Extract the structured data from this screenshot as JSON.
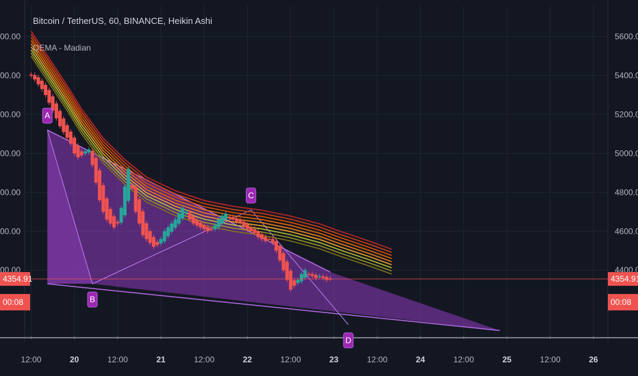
{
  "chart_data": {
    "type": "candlestick",
    "title": "Bitcoin / TetherUS, 60, BINANCE, Heikin Ashi",
    "subtitle": "QEMA - Madian",
    "price_axis": {
      "ticks": [
        "5600.00",
        "5400.00",
        "5200.00",
        "5000.00",
        "4800.00",
        "4600.00",
        "4400.00"
      ],
      "ylim": [
        4060,
        5760
      ]
    },
    "time_axis": {
      "ticks": [
        {
          "label": "12:00",
          "t": 0,
          "day": false
        },
        {
          "label": "20",
          "t": 12,
          "day": true
        },
        {
          "label": "12:00",
          "t": 24,
          "day": false
        },
        {
          "label": "21",
          "t": 36,
          "day": true
        },
        {
          "label": "12:00",
          "t": 48,
          "day": false
        },
        {
          "label": "22",
          "t": 60,
          "day": true
        },
        {
          "label": "12:00",
          "t": 72,
          "day": false
        },
        {
          "label": "23",
          "t": 84,
          "day": true
        },
        {
          "label": "12:00",
          "t": 96,
          "day": false
        },
        {
          "label": "24",
          "t": 108,
          "day": true
        },
        {
          "label": "12:00",
          "t": 120,
          "day": false
        },
        {
          "label": "25",
          "t": 132,
          "day": true
        },
        {
          "label": "12:00",
          "t": 144,
          "day": false
        },
        {
          "label": "26",
          "t": 156,
          "day": true
        }
      ],
      "xlim": [
        -1.8,
        160
      ]
    },
    "last_price": {
      "value": 4354.91,
      "label": "4354.91",
      "countdown": "00:08"
    },
    "pattern_points": [
      {
        "label": "A",
        "t": 4.5,
        "price": 5120
      },
      {
        "label": "B",
        "t": 17,
        "price": 4330
      },
      {
        "label": "C",
        "t": 61,
        "price": 4710
      },
      {
        "label": "D",
        "t": 88,
        "price": 4120
      }
    ],
    "pattern_apex": {
      "t": 130,
      "price": 4090
    },
    "channel": {
      "upper_end_price": 4390
    },
    "ribbon": {
      "colors": [
        "#c62828",
        "#d84315",
        "#e65100",
        "#ef6c00",
        "#f57f17",
        "#f9a825",
        "#c0ca33",
        "#9e9d24",
        "#827717"
      ],
      "center": [
        {
          "t": 0,
          "price": 5560
        },
        {
          "t": 5,
          "price": 5420
        },
        {
          "t": 10,
          "price": 5280
        },
        {
          "t": 14,
          "price": 5160
        },
        {
          "t": 20,
          "price": 5010
        },
        {
          "t": 26,
          "price": 4900
        },
        {
          "t": 32,
          "price": 4810
        },
        {
          "t": 40,
          "price": 4740
        },
        {
          "t": 48,
          "price": 4690
        },
        {
          "t": 56,
          "price": 4660
        },
        {
          "t": 64,
          "price": 4640
        },
        {
          "t": 72,
          "price": 4610
        },
        {
          "t": 80,
          "price": 4570
        },
        {
          "t": 86,
          "price": 4530
        },
        {
          "t": 94,
          "price": 4480
        },
        {
          "t": 100,
          "price": 4440
        }
      ],
      "spread": 16
    },
    "candles": {
      "up_color": "#26a69a",
      "down_color": "#ef5350",
      "close": [
        5400,
        5380,
        5355,
        5330,
        5300,
        5260,
        5220,
        5180,
        5140,
        5110,
        5080,
        5050,
        5000,
        4980,
        4990,
        5010,
        5020,
        4940,
        4850,
        4760,
        4700,
        4660,
        4640,
        4620,
        4640,
        4720,
        4830,
        4920,
        4820,
        4700,
        4640,
        4580,
        4560,
        4540,
        4520,
        4530,
        4560,
        4600,
        4620,
        4640,
        4660,
        4690,
        4720,
        4700,
        4660,
        4640,
        4630,
        4620,
        4610,
        4600,
        4610,
        4630,
        4660,
        4680,
        4690,
        4670,
        4660,
        4650,
        4640,
        4620,
        4610,
        4600,
        4590,
        4570,
        4560,
        4550,
        4560,
        4540,
        4500,
        4450,
        4400,
        4350,
        4300,
        4320,
        4350,
        4380,
        4400,
        4380,
        4370,
        4360,
        4370,
        4360,
        4350,
        4354.91
      ]
    }
  }
}
